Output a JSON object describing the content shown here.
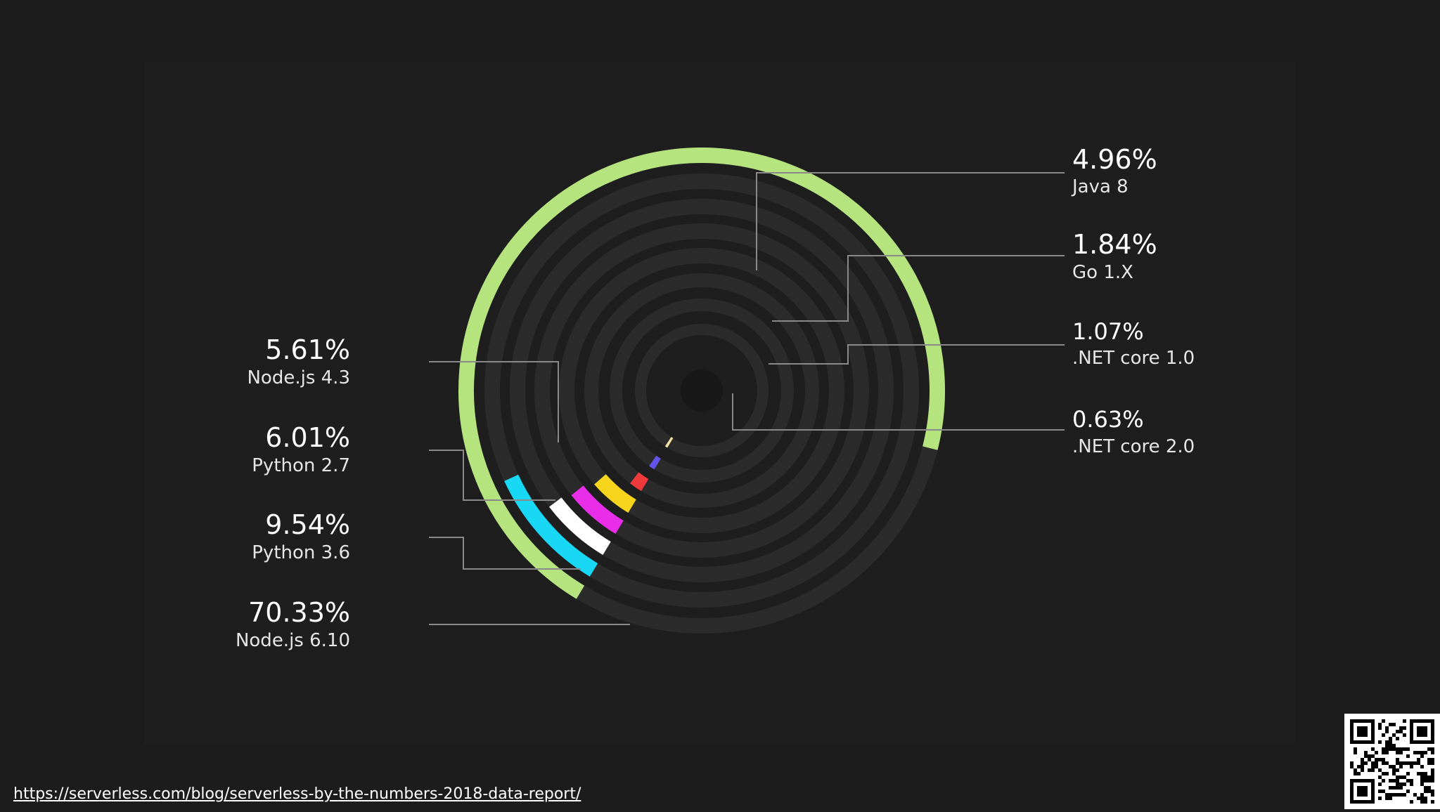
{
  "source_url": "https://serverless.com/blog/serverless-by-the-numbers-2018-data-report/",
  "chart_data": {
    "type": "radial-bar",
    "track_color": "#2b2b2b",
    "series": [
      {
        "name": "Node.js 6.10",
        "pct_label": "70.33%",
        "value": 70.33,
        "color": "#b5e37d"
      },
      {
        "name": "Python 3.6",
        "pct_label": "9.54%",
        "value": 9.54,
        "color": "#18d8f5"
      },
      {
        "name": "Python 2.7",
        "pct_label": "6.01%",
        "value": 6.01,
        "color": "#ffffff"
      },
      {
        "name": "Node.js 4.3",
        "pct_label": "5.61%",
        "value": 5.61,
        "color": "#e92ee9"
      },
      {
        "name": "Java 8",
        "pct_label": "4.96%",
        "value": 4.96,
        "color": "#f7d51d"
      },
      {
        "name": "Go 1.X",
        "pct_label": "1.84%",
        "value": 1.84,
        "color": "#f0393a"
      },
      {
        "name": ".NET core 1.0",
        "pct_label": "1.07%",
        "value": 1.07,
        "color": "#6254e8"
      },
      {
        "name": ".NET core 2.0",
        "pct_label": "0.63%",
        "value": 0.63,
        "color": "#f3e3a3"
      }
    ]
  },
  "qr_icon": "qr-code-icon"
}
